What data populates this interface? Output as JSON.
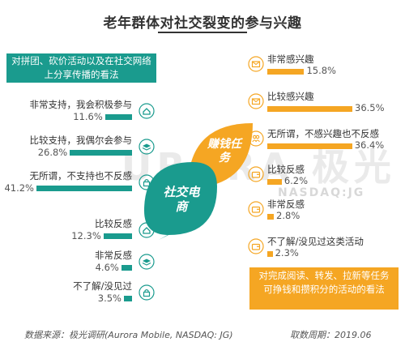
{
  "title": "老年群体对社交裂变的参与兴趣",
  "left_box": "对拼团、砍价活动以及在社交网络上分享传播的看法",
  "right_box": "对完成阅读、转发、拉新等任务可挣钱和攒积分的活动的看法",
  "center": {
    "earn_label": "赚钱任务",
    "social_label": "社交电商"
  },
  "watermark": {
    "brand": "URORA 极光",
    "sub": "NASDAQ:JG"
  },
  "colors": {
    "teal": "#1a9b8e",
    "orange": "#f5a623",
    "bubble_dark": "#16897d"
  },
  "footer": {
    "source": "数据来源：极光调研(Aurora Mobile, NASDAQ: JG)",
    "period": "取数周期：2019.06"
  },
  "chart_data": [
    {
      "type": "bar",
      "title": "对拼团、砍价活动以及在社交网络上分享传播的看法",
      "categories": [
        "非常支持，我会积极参与",
        "比较支持，我偶尔会参与",
        "无所谓，不支持也不反感",
        "比较反感",
        "非常反感",
        "不了解/没见过"
      ],
      "values": [
        11.6,
        26.8,
        41.2,
        12.3,
        4.6,
        3.5
      ],
      "labels": [
        "11.6%",
        "26.8%",
        "41.2%",
        "12.3%",
        "4.6%",
        "3.5%"
      ],
      "unit": "%",
      "icons": [
        "home-icon",
        "layers-icon",
        "lock-icon",
        "home-icon",
        "layers-icon",
        "lock-icon"
      ]
    },
    {
      "type": "bar",
      "title": "对完成阅读、转发、拉新等任务可挣钱和攒积分的活动的看法",
      "categories": [
        "非常感兴趣",
        "比较感兴趣",
        "无所谓，不感兴趣也不反感",
        "比较反感",
        "非常反感",
        "不了解/没见过这类活动"
      ],
      "values": [
        15.8,
        36.5,
        36.4,
        6.2,
        2.8,
        2.3
      ],
      "labels": [
        "15.8%",
        "36.5%",
        "36.4%",
        "6.2%",
        "2.8%",
        "2.3%"
      ],
      "unit": "%",
      "icons": [
        "mail-icon",
        "mail-icon",
        "people-icon",
        "wallet-icon",
        "wallet-icon",
        "wallet-icon"
      ]
    }
  ]
}
